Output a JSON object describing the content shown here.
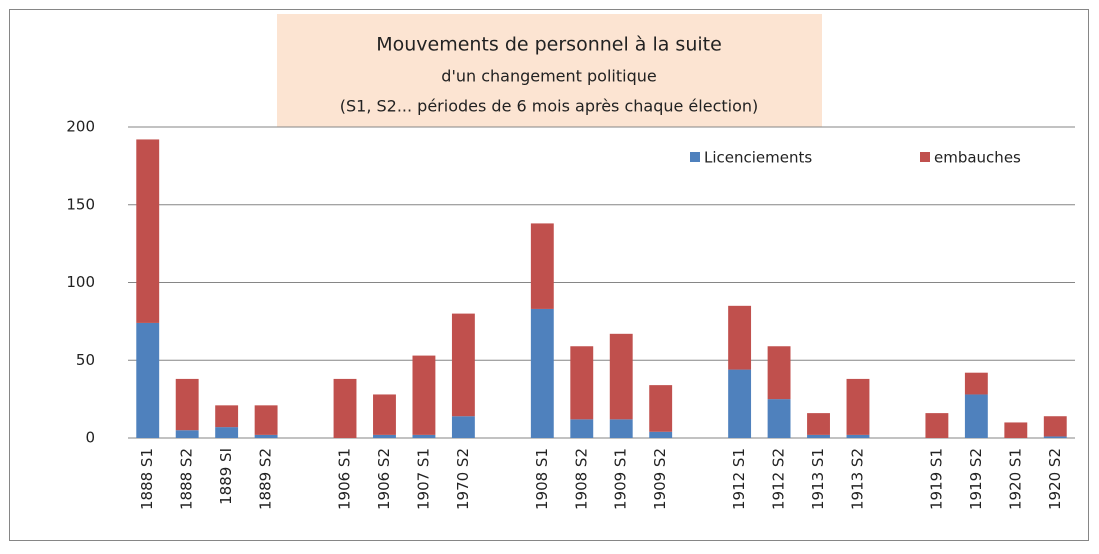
{
  "chart_data": {
    "type": "stacked_bar",
    "title": [
      "Mouvements de personnel à la suite",
      "d'un changement politique"
    ],
    "subtitle": "(S1, S2... périodes de 6 mois après chaque élection)",
    "categories": [
      "1888 S1",
      "1888 S2",
      "1889 SI",
      "1889 S2",
      null,
      "1906 S1",
      "1906 S2",
      "1907 S1",
      "1970 S2",
      null,
      "1908 S1",
      "1908 S2",
      "1909 S1",
      "1909 S2",
      null,
      "1912 S1",
      "1912 S2",
      "1913 S1",
      "1913 S2",
      null,
      "1919 S1",
      "1919 S2",
      "1920 S1",
      "1920 S2"
    ],
    "series": [
      {
        "name": "Licenciements",
        "color": "#4f81bd",
        "values": [
          74,
          5,
          7,
          2,
          null,
          0,
          2,
          2,
          14,
          null,
          83,
          12,
          12,
          4,
          null,
          44,
          25,
          2,
          2,
          null,
          0,
          28,
          0,
          1
        ]
      },
      {
        "name": "embauches",
        "color": "#c0504d",
        "values": [
          118,
          33,
          14,
          19,
          null,
          38,
          26,
          51,
          66,
          null,
          55,
          47,
          55,
          30,
          null,
          41,
          34,
          14,
          36,
          null,
          16,
          14,
          10,
          13
        ]
      }
    ],
    "ylim": [
      0,
      200
    ],
    "yticks": [
      0,
      50,
      100,
      150,
      200
    ],
    "grid": true,
    "legend": "top-right"
  }
}
